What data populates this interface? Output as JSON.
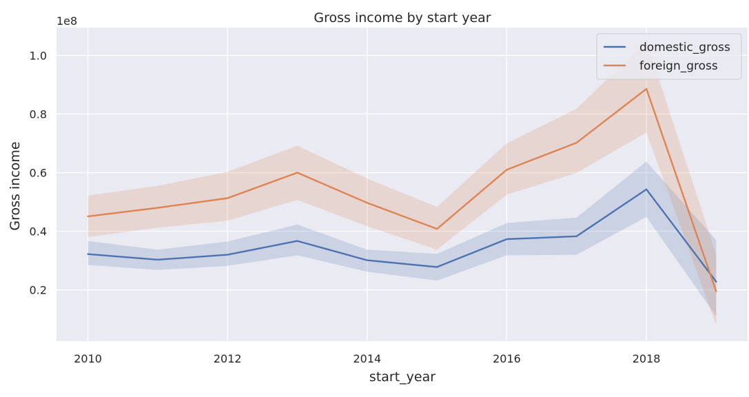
{
  "chart_data": {
    "type": "line",
    "title": "Gross income by start year",
    "xlabel": "start_year",
    "ylabel": "Gross income",
    "y_offset_label": "1e8",
    "x": [
      2010,
      2011,
      2012,
      2013,
      2014,
      2015,
      2016,
      2017,
      2018,
      2019
    ],
    "xlim": [
      2009.55,
      2019.45
    ],
    "ylim": [
      0.025,
      1.095
    ],
    "x_ticks": [
      2010,
      2012,
      2014,
      2016,
      2018
    ],
    "x_tick_labels": [
      "2010",
      "2012",
      "2014",
      "2016",
      "2018"
    ],
    "y_ticks": [
      0.2,
      0.4,
      0.6,
      0.8,
      1.0
    ],
    "y_tick_labels": [
      "0.2",
      "0.4",
      "0.6",
      "0.8",
      "1.0"
    ],
    "grid": true,
    "legend_position": "top-right",
    "background_color": "#eaeaf2",
    "series": [
      {
        "name": "domestic_gross",
        "color": "#4c72b0",
        "values": [
          0.322,
          0.303,
          0.32,
          0.367,
          0.301,
          0.278,
          0.373,
          0.383,
          0.543,
          0.228
        ],
        "ci_low": [
          0.285,
          0.268,
          0.282,
          0.318,
          0.262,
          0.232,
          0.318,
          0.32,
          0.449,
          0.11
        ],
        "ci_high": [
          0.367,
          0.337,
          0.365,
          0.423,
          0.337,
          0.323,
          0.428,
          0.447,
          0.638,
          0.37
        ]
      },
      {
        "name": "foreign_gross",
        "color": "#dd8452",
        "values": [
          0.451,
          0.48,
          0.513,
          0.6,
          0.497,
          0.408,
          0.61,
          0.702,
          0.886,
          0.195
        ],
        "ci_low": [
          0.38,
          0.412,
          0.436,
          0.507,
          0.417,
          0.337,
          0.525,
          0.599,
          0.737,
          0.08
        ],
        "ci_high": [
          0.522,
          0.555,
          0.603,
          0.692,
          0.58,
          0.483,
          0.7,
          0.818,
          1.05,
          0.32
        ]
      }
    ]
  }
}
